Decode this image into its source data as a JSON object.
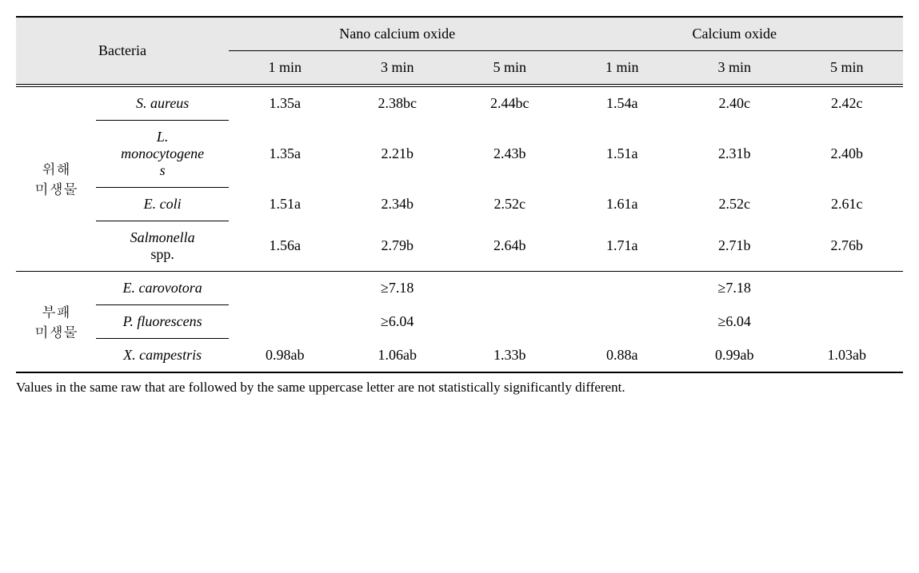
{
  "header": {
    "bacteria": "Bacteria",
    "group1": "Nano calcium oxide",
    "group2": "Calcium oxide",
    "t1": "1 min",
    "t2": "3 min",
    "t3": "5 min"
  },
  "cat1": "위해\n미생물",
  "cat2": "부패\n미생물",
  "rows": {
    "r1": {
      "bact": "S. aureus",
      "n1": "1.35a",
      "n3": "2.38bc",
      "n5": "2.44bc",
      "c1": "1.54a",
      "c3": "2.40c",
      "c5": "2.42c"
    },
    "r2": {
      "bact": "L.\nmonocytogene\ns",
      "n1": "1.35a",
      "n3": "2.21b",
      "n5": "2.43b",
      "c1": "1.51a",
      "c3": "2.31b",
      "c5": "2.40b"
    },
    "r3": {
      "bact": "E. coli",
      "n1": "1.51a",
      "n3": "2.34b",
      "n5": "2.52c",
      "c1": "1.61a",
      "c3": "2.52c",
      "c5": "2.61c"
    },
    "r4": {
      "bact": "Salmonella",
      "bact_sub": "spp.",
      "n1": "1.56a",
      "n3": "2.79b",
      "n5": "2.64b",
      "c1": "1.71a",
      "c3": "2.71b",
      "c5": "2.76b"
    },
    "r5": {
      "bact": "E. carovotora",
      "nano": "≥7.18",
      "cal": "≥7.18"
    },
    "r6": {
      "bact": "P. fluorescens",
      "nano": "≥6.04",
      "cal": "≥6.04"
    },
    "r7": {
      "bact": "X. campestris",
      "n1": "0.98ab",
      "n3": "1.06ab",
      "n5": "1.33b",
      "c1": "0.88a",
      "c3": "0.99ab",
      "c5": "1.03ab"
    }
  },
  "footnote": "Values in the same raw that are followed by the same uppercase letter are not statistically significantly different."
}
